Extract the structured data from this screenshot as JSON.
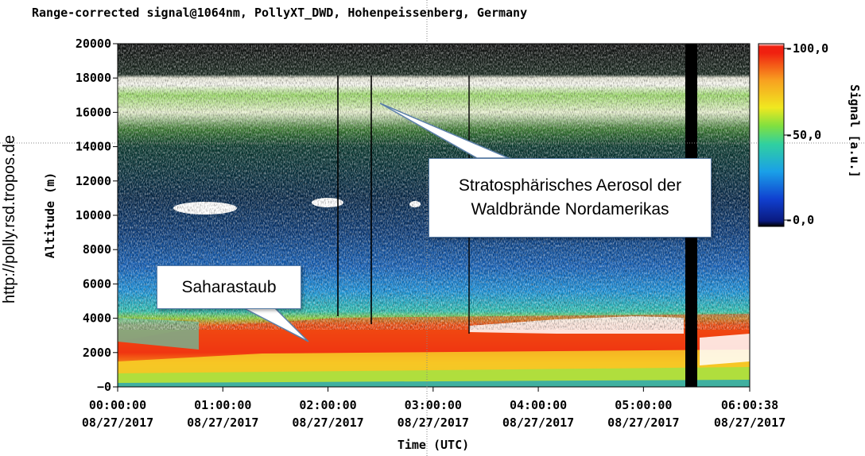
{
  "chart_data": {
    "type": "heatmap",
    "title": "Range-corrected signal@1064nm, PollyXT_DWD, Hohenpeissenberg, Germany",
    "xlabel": "Time (UTC)",
    "ylabel": "Altitude (m)",
    "x_range": [
      "00:00:00",
      "06:00:38"
    ],
    "ylim": [
      0,
      20000
    ],
    "x_ticks": [
      {
        "time": "00:00:00",
        "date": "08/27/2017"
      },
      {
        "time": "01:00:00",
        "date": "08/27/2017"
      },
      {
        "time": "02:00:00",
        "date": "08/27/2017"
      },
      {
        "time": "03:00:00",
        "date": "08/27/2017"
      },
      {
        "time": "04:00:00",
        "date": "08/27/2017"
      },
      {
        "time": "05:00:00",
        "date": "08/27/2017"
      },
      {
        "time": "06:00:38",
        "date": "08/27/2017"
      }
    ],
    "y_ticks": [
      "20000",
      "18000",
      "16000",
      "14000",
      "12000",
      "10000",
      "8000",
      "6000",
      "4000",
      "2000",
      "0"
    ],
    "colorbar": {
      "label": "Signal [a.u.]",
      "range": [
        0,
        100
      ],
      "ticks": [
        "100,0",
        "50,0",
        "0,0"
      ]
    },
    "features": [
      {
        "name": "Saharastaub",
        "altitude_range_m": [
          1000,
          4000
        ]
      },
      {
        "name": "Stratosphärisches Aerosol der Waldbrände Nordamerikas",
        "altitude_range_m": [
          15000,
          18000
        ]
      }
    ]
  },
  "annotations": {
    "saharastaub": "Saharastaub",
    "strato_line1": "Stratosphärisches Aerosol der",
    "strato_line2": "Waldbrände Nordamerikas"
  },
  "side_label": "http://polly.rsd.tropos.de",
  "colors": {
    "cmap": [
      "#000000",
      "#0a2a9a",
      "#1565d8",
      "#1ea0e0",
      "#2ec8b0",
      "#7fdc3c",
      "#f0e020",
      "#f8a020",
      "#f03010",
      "#ffffff"
    ]
  }
}
